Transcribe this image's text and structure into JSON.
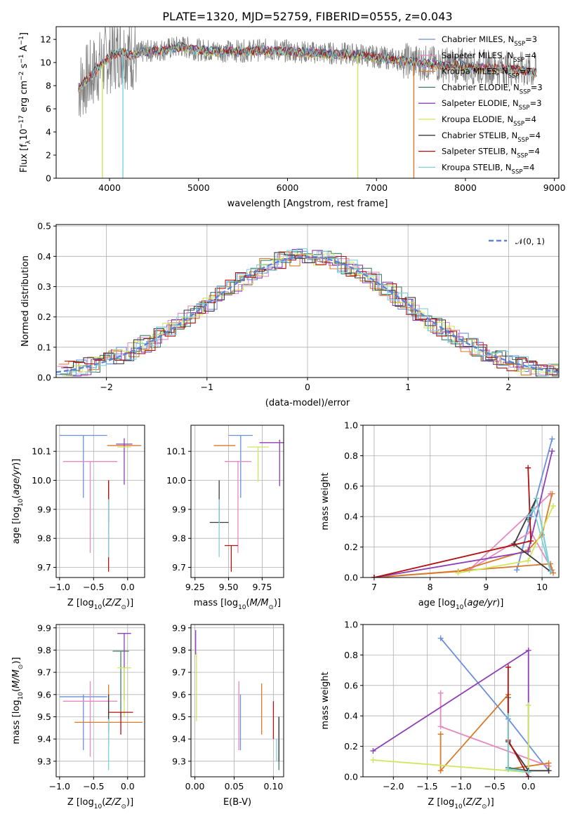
{
  "figure_title": "PLATE=1320, MJD=52759, FIBERID=0555, z=0.043",
  "colors": [
    "#6a8fdc",
    "#e68ac1",
    "#d97a2a",
    "#3f7f6a",
    "#8e3fb5",
    "#cde85a",
    "#3a3a3a",
    "#b31010",
    "#7fd2dc"
  ],
  "chart_data": [
    {
      "type": "line",
      "panel": "spectrum",
      "title": "PLATE=1320, MJD=52759, FIBERID=0555, z=0.043",
      "xlabel": "wavelength [Angstrom, rest frame]",
      "ylabel_main": "Flux [f",
      "ylabel_sub": "λ",
      "ylabel_rest": "10",
      "ylabel_sup1": "−17",
      "ylabel_tail": " erg cm",
      "ylabel_sup2": "−2",
      "ylabel_s": " s",
      "ylabel_sup3": "−1",
      "ylabel_A": " A",
      "ylabel_sup4": "−1",
      "ylabel_end": "]",
      "xlim": [
        3400,
        9050
      ],
      "ylim": [
        0,
        13.1
      ],
      "xticks": [
        "4000",
        "5000",
        "6000",
        "7000",
        "8000",
        "9000"
      ],
      "yticks": [
        "0",
        "2",
        "4",
        "6",
        "8",
        "10",
        "12"
      ],
      "xtick_values": [
        4000,
        5000,
        6000,
        7000,
        8000,
        9000
      ],
      "ytick_values": [
        0,
        2,
        4,
        6,
        8,
        10,
        12
      ],
      "observed_color": "#808080",
      "series": [
        {
          "name_main": "Chabrier MILES, N",
          "name_sub": "SSP",
          "name_end": "=3",
          "color": "#6a8fdc"
        },
        {
          "name_main": "Salpeter MILES, N",
          "name_sub": "SSP",
          "name_end": "=4",
          "color": "#e68ac1"
        },
        {
          "name_main": "Kroupa MILES, N",
          "name_sub": "SSP",
          "name_end": "=7",
          "color": "#d97a2a"
        },
        {
          "name_main": "Chabrier ELODIE, N",
          "name_sub": "SSP",
          "name_end": "=3",
          "color": "#3f7f6a"
        },
        {
          "name_main": "Salpeter ELODIE, N",
          "name_sub": "SSP",
          "name_end": "=3",
          "color": "#8e3fb5"
        },
        {
          "name_main": "Kroupa ELODIE, N",
          "name_sub": "SSP",
          "name_end": "=4",
          "color": "#cde85a"
        },
        {
          "name_main": "Chabrier STELIB, N",
          "name_sub": "SSP",
          "name_end": "=4",
          "color": "#3a3a3a"
        },
        {
          "name_main": "Salpeter STELIB, N",
          "name_sub": "SSP",
          "name_end": "=4",
          "color": "#b31010"
        },
        {
          "name_main": "Kroupa STELIB, N",
          "name_sub": "SSP",
          "name_end": "=4",
          "color": "#7fd2dc"
        }
      ],
      "continuum": {
        "x": [
          3650,
          3750,
          3850,
          3950,
          4050,
          4150,
          4250,
          4350,
          4450,
          4600,
          4800,
          5000,
          5200,
          5500,
          5800,
          6000,
          6200,
          6500,
          6800,
          7000,
          7200,
          7400,
          7600,
          7800,
          8000,
          8200,
          8400,
          8600,
          8800
        ],
        "y": [
          7.8,
          8.6,
          9.4,
          10.2,
          10.7,
          11.0,
          10.6,
          10.9,
          11.0,
          11.1,
          11.4,
          11.1,
          11.0,
          11.0,
          11.1,
          11.0,
          10.9,
          10.8,
          10.7,
          10.5,
          10.3,
          10.1,
          9.9,
          9.8,
          9.7,
          9.6,
          9.5,
          9.4,
          9.2
        ]
      },
      "spikes": [
        {
          "x": 3920,
          "y": 0,
          "color": "#cde85a"
        },
        {
          "x": 4150,
          "y": 0,
          "color": "#7fd2dc"
        },
        {
          "x": 6790,
          "y": 0,
          "color": "#cde85a"
        },
        {
          "x": 7420,
          "y": 0,
          "color": "#d97a2a"
        }
      ]
    },
    {
      "type": "step",
      "panel": "residuals",
      "xlabel": "(data-model)/error",
      "ylabel": "Normed distribution",
      "xlim": [
        -2.5,
        2.5
      ],
      "ylim": [
        0,
        0.505
      ],
      "xticks": [
        "−2",
        "−1",
        "0",
        "1",
        "2"
      ],
      "xtick_values": [
        -2,
        -1,
        0,
        1,
        2
      ],
      "yticks": [
        "0.0",
        "0.1",
        "0.2",
        "0.3",
        "0.4",
        "0.5"
      ],
      "ytick_values": [
        0,
        0.1,
        0.2,
        0.3,
        0.4,
        0.5
      ],
      "legend_label": "𝒩(0, 1)",
      "legend_color": "#5b84d6",
      "bin_width": 0.1,
      "bin_start": -2.5
    },
    {
      "type": "errorbar",
      "panel": "age-vs-Z",
      "xlabel": "Z [log",
      "xlabel_sub": "10",
      "xlabel_end": "(Z/Z",
      "xlabel_sun": "⊙",
      "xlabel_close": ")]",
      "ylabel": "age  [log",
      "ylabel_sub": "10",
      "ylabel_end": "(age/yr)]",
      "xlim": [
        -1.05,
        0.25
      ],
      "ylim": [
        9.665,
        10.19
      ],
      "xticks": [
        "−1.0",
        "−0.5",
        "0.0"
      ],
      "xtick_values": [
        -1.0,
        -0.5,
        0.0
      ],
      "yticks": [
        "9.7",
        "9.8",
        "9.9",
        "10.0",
        "10.1"
      ],
      "ytick_values": [
        9.7,
        9.8,
        9.9,
        10.0,
        10.1
      ],
      "points": [
        {
          "x": -0.65,
          "y": 10.155,
          "xerr": 0.35,
          "yerr_lo": 0.215,
          "yerr_hi": 0.0,
          "color": "#6a8fdc"
        },
        {
          "x": -0.55,
          "y": 10.065,
          "xerr": 0.4,
          "yerr_lo": 0.315,
          "yerr_hi": 0.0,
          "color": "#e68ac1"
        },
        {
          "x": -0.05,
          "y": 10.12,
          "xerr": 0.25,
          "yerr_lo": 0.0,
          "yerr_hi": 0.0,
          "color": "#d97a2a"
        },
        {
          "x": -0.28,
          "y": 9.855,
          "xerr": 0.0,
          "yerr_lo": 0.0,
          "yerr_hi": 0.0,
          "color": "#3f7f6a"
        },
        {
          "x": -0.05,
          "y": 10.125,
          "xerr": 0.12,
          "yerr_lo": 0.14,
          "yerr_hi": 0.02,
          "color": "#8e3fb5"
        },
        {
          "x": -0.05,
          "y": 10.115,
          "xerr": 0.1,
          "yerr_lo": 0.0,
          "yerr_hi": 0.0,
          "color": "#cde85a"
        },
        {
          "x": -0.28,
          "y": 9.855,
          "xerr": 0.0,
          "yerr_lo": 0.0,
          "yerr_hi": 0.145,
          "color": "#3a3a3a"
        },
        {
          "x": -0.28,
          "y": 9.775,
          "xerr": 0.0,
          "yerr_lo": 0.09,
          "yerr_hi": 0.225,
          "color": "#b31010"
        },
        {
          "x": -0.28,
          "y": 9.855,
          "xerr": 0.0,
          "yerr_lo": 0.12,
          "yerr_hi": 0.08,
          "color": "#7fd2dc"
        }
      ]
    },
    {
      "type": "errorbar",
      "panel": "age-vs-mass",
      "xlabel": "mass [log",
      "xlabel_sub": "10",
      "xlabel_end": "(M/M",
      "xlabel_sun": "⊙",
      "xlabel_close": ")]",
      "xlim": [
        9.22,
        9.91
      ],
      "ylim": [
        9.665,
        10.19
      ],
      "xticks": [
        "9.25",
        "9.50",
        "9.75"
      ],
      "xtick_values": [
        9.25,
        9.5,
        9.75
      ],
      "yticks": [
        "9.7",
        "9.8",
        "9.9",
        "10.0",
        "10.1"
      ],
      "ytick_values": [
        9.7,
        9.8,
        9.9,
        10.0,
        10.1
      ],
      "points": [
        {
          "x": 9.59,
          "y": 10.155,
          "xerr": 0.09,
          "yerr_lo": 0.215,
          "yerr_hi": 0.0,
          "color": "#6a8fdc"
        },
        {
          "x": 9.57,
          "y": 10.065,
          "xerr": 0.1,
          "yerr_lo": 0.315,
          "yerr_hi": 0.0,
          "color": "#e68ac1"
        },
        {
          "x": 9.47,
          "y": 10.12,
          "xerr": 0.08,
          "yerr_lo": 0.0,
          "yerr_hi": 0.0,
          "color": "#d97a2a"
        },
        {
          "x": 9.43,
          "y": 9.855,
          "xerr": 0.0,
          "yerr_lo": 0.0,
          "yerr_hi": 0.0,
          "color": "#3f7f6a"
        },
        {
          "x": 9.88,
          "y": 10.13,
          "xerr": 0.15,
          "yerr_lo": 0.15,
          "yerr_hi": 0.01,
          "color": "#8e3fb5"
        },
        {
          "x": 9.72,
          "y": 10.115,
          "xerr": 0.08,
          "yerr_lo": 0.12,
          "yerr_hi": 0.0,
          "color": "#cde85a"
        },
        {
          "x": 9.43,
          "y": 9.855,
          "xerr": 0.07,
          "yerr_lo": 0.0,
          "yerr_hi": 0.145,
          "color": "#3a3a3a"
        },
        {
          "x": 9.52,
          "y": 9.775,
          "xerr": 0.05,
          "yerr_lo": 0.09,
          "yerr_hi": 0.0,
          "color": "#b31010"
        },
        {
          "x": 9.43,
          "y": 9.855,
          "xerr": 0.0,
          "yerr_lo": 0.12,
          "yerr_hi": 0.08,
          "color": "#7fd2dc"
        }
      ]
    },
    {
      "type": "line",
      "panel": "weight-vs-age",
      "xlabel": "age  [log",
      "xlabel_sub": "10",
      "xlabel_end": "(age/yr)]",
      "ylabel": "mass weight",
      "xlim": [
        6.8,
        10.3
      ],
      "ylim": [
        0,
        1.0
      ],
      "xticks": [
        "7",
        "8",
        "9",
        "10"
      ],
      "xtick_values": [
        7,
        8,
        9,
        10
      ],
      "yticks": [
        "0.0",
        "0.2",
        "0.4",
        "0.6",
        "0.8",
        "1.0"
      ],
      "ytick_values": [
        0,
        0.2,
        0.4,
        0.6,
        0.8,
        1.0
      ],
      "series": [
        {
          "color": "#6a8fdc",
          "x": [
            10.18,
            9.55,
            9.8
          ],
          "y": [
            0.91,
            0.05,
            0.4
          ]
        },
        {
          "color": "#e68ac1",
          "x": [
            10.15,
            8.7,
            9.8,
            10.18
          ],
          "y": [
            0.55,
            0.05,
            0.3,
            0.05
          ]
        },
        {
          "color": "#d97a2a",
          "x": [
            10.18,
            10.0,
            9.75,
            8.5,
            7.0,
            10.15,
            10.2
          ],
          "y": [
            0.55,
            0.28,
            0.18,
            0.04,
            0.0,
            0.09,
            0.03
          ]
        },
        {
          "color": "#3f7f6a",
          "x": [
            9.75,
            9.9,
            10.15
          ],
          "y": [
            0.38,
            0.52,
            0.04
          ]
        },
        {
          "color": "#8e3fb5",
          "x": [
            10.18,
            9.75,
            7.0
          ],
          "y": [
            0.83,
            0.17,
            0.0
          ]
        },
        {
          "color": "#cde85a",
          "x": [
            10.2,
            9.75,
            8.5
          ],
          "y": [
            0.47,
            0.11,
            0.03
          ]
        },
        {
          "color": "#3a3a3a",
          "x": [
            9.9,
            9.5,
            10.15
          ],
          "y": [
            0.52,
            0.22,
            0.04
          ]
        },
        {
          "color": "#b31010",
          "x": [
            9.75,
            9.8,
            7.0
          ],
          "y": [
            0.72,
            0.24,
            0.0
          ]
        },
        {
          "color": "#7fd2dc",
          "x": [
            9.75,
            9.85,
            10.15,
            9.9
          ],
          "y": [
            0.4,
            0.45,
            0.04,
            0.52
          ]
        }
      ]
    },
    {
      "type": "errorbar",
      "panel": "mass-vs-Z",
      "xlabel": "Z [log",
      "xlabel_sub": "10",
      "xlabel_end": "(Z/Z",
      "xlabel_sun": "⊙",
      "xlabel_close": ")]",
      "ylabel": "mass [log",
      "ylabel_sub": "10",
      "ylabel_end": "(M/M",
      "ylabel_sun": "⊙",
      "ylabel_close": ")]",
      "xlim": [
        -1.05,
        0.25
      ],
      "ylim": [
        9.23,
        9.915
      ],
      "xticks": [
        "−1.0",
        "−0.5",
        "0.0"
      ],
      "xtick_values": [
        -1.0,
        -0.5,
        0.0
      ],
      "yticks": [
        "9.3",
        "9.4",
        "9.5",
        "9.6",
        "9.7",
        "9.8",
        "9.9"
      ],
      "ytick_values": [
        9.3,
        9.4,
        9.5,
        9.6,
        9.7,
        9.8,
        9.9
      ],
      "points": [
        {
          "x": -0.65,
          "y": 9.59,
          "xerr": 0.35,
          "yerr_lo": 0.24,
          "yerr_hi": 0.01,
          "color": "#6a8fdc"
        },
        {
          "x": -0.55,
          "y": 9.57,
          "xerr": 0.4,
          "yerr_lo": 0.25,
          "yerr_hi": 0.09,
          "color": "#e68ac1"
        },
        {
          "x": -0.28,
          "y": 9.475,
          "xerr": 0.5,
          "yerr_lo": 0.1,
          "yerr_hi": 0.17,
          "color": "#d97a2a"
        },
        {
          "x": -0.1,
          "y": 9.795,
          "xerr": 0.12,
          "yerr_lo": 0.3,
          "yerr_hi": 0.0,
          "color": "#3f7f6a"
        },
        {
          "x": -0.05,
          "y": 9.875,
          "xerr": 0.1,
          "yerr_lo": 0.3,
          "yerr_hi": 0.0,
          "color": "#8e3fb5"
        },
        {
          "x": -0.05,
          "y": 9.72,
          "xerr": 0.1,
          "yerr_lo": 0.22,
          "yerr_hi": 0.0,
          "color": "#cde85a"
        },
        {
          "x": -0.28,
          "y": 9.43,
          "xerr": 0.0,
          "yerr_lo": 0.0,
          "yerr_hi": 0.17,
          "color": "#3a3a3a"
        },
        {
          "x": -0.1,
          "y": 9.52,
          "xerr": 0.18,
          "yerr_lo": 0.1,
          "yerr_hi": 0.0,
          "color": "#b31010"
        },
        {
          "x": -0.28,
          "y": 9.43,
          "xerr": 0.0,
          "yerr_lo": 0.17,
          "yerr_hi": 0.06,
          "color": "#7fd2dc"
        }
      ]
    },
    {
      "type": "errorbar",
      "panel": "mass-vs-EBV",
      "xlabel": "E(B-V)",
      "xlim": [
        -0.005,
        0.113
      ],
      "ylim": [
        9.23,
        9.915
      ],
      "xticks": [
        "0.00",
        "0.05",
        "0.10"
      ],
      "xtick_values": [
        0.0,
        0.05,
        0.1
      ],
      "yticks": [
        "9.3",
        "9.4",
        "9.5",
        "9.6",
        "9.7",
        "9.8",
        "9.9"
      ],
      "ytick_values": [
        9.3,
        9.4,
        9.5,
        9.6,
        9.7,
        9.8,
        9.9
      ],
      "points": [
        {
          "x": 0.058,
          "y": 9.59,
          "yerr_lo": 0.24,
          "yerr_hi": 0.01,
          "color": "#6a8fdc"
        },
        {
          "x": 0.056,
          "y": 9.57,
          "yerr_lo": 0.22,
          "yerr_hi": 0.09,
          "color": "#e68ac1"
        },
        {
          "x": 0.085,
          "y": 9.55,
          "yerr_lo": 0.13,
          "yerr_hi": 0.1,
          "color": "#d97a2a"
        },
        {
          "x": 0.107,
          "y": 9.43,
          "yerr_lo": 0.17,
          "yerr_hi": 0.07,
          "color": "#3f7f6a"
        },
        {
          "x": 0.001,
          "y": 9.84,
          "yerr_lo": 0.06,
          "yerr_hi": 0.05,
          "color": "#8e3fb5"
        },
        {
          "x": 0.002,
          "y": 9.72,
          "yerr_lo": 0.24,
          "yerr_hi": 0.07,
          "color": "#cde85a"
        },
        {
          "x": 0.107,
          "y": 9.4,
          "yerr_lo": 0.1,
          "yerr_hi": 0.1,
          "color": "#3a3a3a"
        },
        {
          "x": 0.1,
          "y": 9.48,
          "yerr_lo": 0.08,
          "yerr_hi": 0.09,
          "color": "#b31010"
        },
        {
          "x": 0.104,
          "y": 9.4,
          "yerr_lo": 0.1,
          "yerr_hi": 0.0,
          "color": "#7fd2dc"
        }
      ]
    },
    {
      "type": "line",
      "panel": "weight-vs-Z",
      "xlabel": "Z [log",
      "xlabel_sub": "10",
      "xlabel_end": "(Z/Z",
      "xlabel_sun": "⊙",
      "xlabel_close": ")]",
      "ylabel": "mass weight",
      "xlim": [
        -2.45,
        0.45
      ],
      "ylim": [
        0,
        1.0
      ],
      "xticks": [
        "−2.0",
        "−1.5",
        "−1.0",
        "−0.5",
        "0.0"
      ],
      "xtick_values": [
        -2.0,
        -1.5,
        -1.0,
        -0.5,
        0.0
      ],
      "yticks": [
        "0.0",
        "0.2",
        "0.4",
        "0.6",
        "0.8",
        "1.0"
      ],
      "ytick_values": [
        0,
        0.2,
        0.4,
        0.6,
        0.8,
        1.0
      ],
      "series": [
        {
          "color": "#6a8fdc",
          "x": [
            -1.3,
            -0.3,
            0.3
          ],
          "y": [
            0.91,
            0.38,
            0.04
          ]
        },
        {
          "color": "#e68ac1",
          "x": [
            -1.3,
            -1.3,
            0.3
          ],
          "y": [
            0.55,
            0.33,
            0.07
          ]
        },
        {
          "color": "#d97a2a",
          "x": [
            -1.3,
            -1.3,
            -0.3,
            -0.3,
            0.3,
            0.3
          ],
          "y": [
            0.28,
            0.04,
            0.54,
            0.05,
            0.09,
            0.04
          ]
        },
        {
          "color": "#3f7f6a",
          "x": [
            -0.3,
            -0.3,
            0.0
          ],
          "y": [
            0.52,
            0.06,
            0.04
          ]
        },
        {
          "color": "#8e3fb5",
          "x": [
            -2.3,
            0.0,
            0.0
          ],
          "y": [
            0.17,
            0.83,
            0.0
          ]
        },
        {
          "color": "#cde85a",
          "x": [
            -2.3,
            0.0,
            0.0
          ],
          "y": [
            0.11,
            0.03,
            0.47
          ]
        },
        {
          "color": "#3a3a3a",
          "x": [
            -0.3,
            0.0,
            0.3
          ],
          "y": [
            0.23,
            0.04,
            0.04
          ]
        },
        {
          "color": "#b31010",
          "x": [
            -0.3,
            -0.3,
            0.0
          ],
          "y": [
            0.72,
            0.24,
            0.0
          ]
        },
        {
          "color": "#7fd2dc",
          "x": [
            -0.3,
            -0.3,
            0.0
          ],
          "y": [
            0.4,
            0.05,
            0.03
          ]
        }
      ]
    }
  ]
}
